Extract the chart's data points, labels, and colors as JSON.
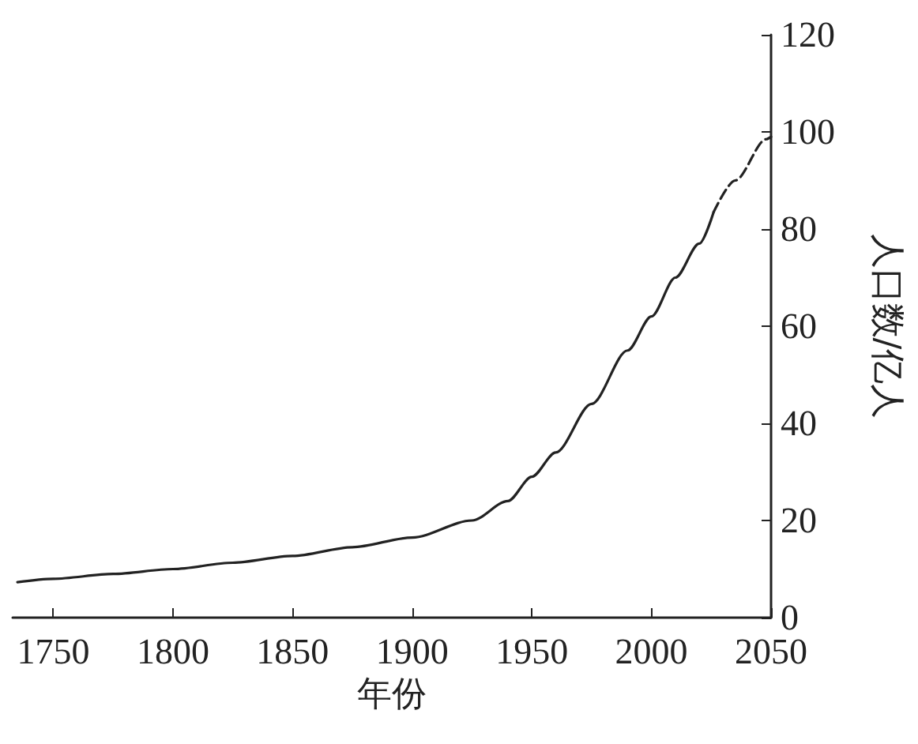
{
  "chart_data": {
    "type": "line",
    "xlabel": "年份",
    "ylabel": "人口数/亿人",
    "xlim": [
      1733,
      2050
    ],
    "xticks": [
      1750,
      1800,
      1850,
      1900,
      1950,
      2000,
      2050
    ],
    "ylim": [
      0,
      120
    ],
    "yticks": [
      0,
      20,
      40,
      60,
      80,
      100,
      120
    ],
    "grid": false,
    "marker": "none",
    "series": [
      {
        "color": "#222222",
        "line_style": "solid",
        "x": [
          1735,
          1750,
          1775,
          1800,
          1825,
          1850,
          1875,
          1900,
          1925,
          1940,
          1950,
          1960,
          1975,
          1990,
          2000,
          2010,
          2020,
          2026
        ],
        "values": [
          7.3,
          8,
          9,
          10,
          11.3,
          12.7,
          14.5,
          16.5,
          20,
          24,
          29,
          34,
          44,
          55,
          62,
          70,
          77,
          83.5
        ]
      },
      {
        "color": "#222222",
        "line_style": "dashed",
        "x": [
          2026,
          2035,
          2048,
          2050
        ],
        "values": [
          83.5,
          90,
          98.5,
          99
        ]
      }
    ]
  }
}
